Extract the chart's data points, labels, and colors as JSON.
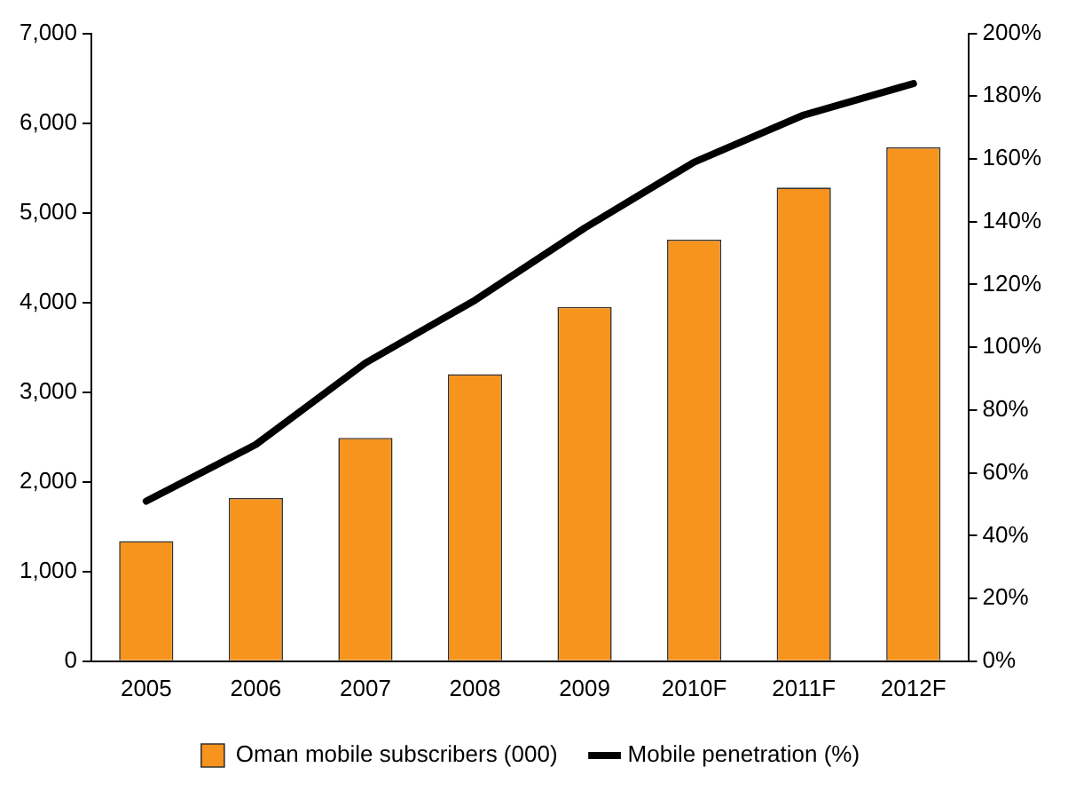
{
  "chart_data": {
    "type": "bar",
    "categories": [
      "2005",
      "2006",
      "2007",
      "2008",
      "2009",
      "2010F",
      "2011F",
      "2012F"
    ],
    "series": [
      {
        "name": "Oman mobile subscribers (000)",
        "color": "#f7941d",
        "values": [
          1340,
          1820,
          2490,
          3200,
          3950,
          4700,
          5280,
          5730
        ]
      },
      {
        "name": "Mobile penetration (%)",
        "type": "line",
        "axis": "y2",
        "color": "#000000",
        "values": [
          51,
          69,
          95,
          115,
          138,
          159,
          174,
          184
        ]
      }
    ],
    "ylim": [
      0,
      7000
    ],
    "yticks": [
      0,
      {
        "value": 1000,
        "label": "1,000"
      },
      {
        "value": 2000,
        "label": "2,000"
      },
      {
        "value": 3000,
        "label": "3,000"
      },
      {
        "value": 4000,
        "label": "4,000"
      },
      {
        "value": 5000,
        "label": "5,000"
      },
      {
        "value": 6000,
        "label": "6,000"
      },
      {
        "value": 7000,
        "label": "7,000"
      }
    ],
    "y2lim": [
      0,
      200
    ],
    "y2ticks": [
      {
        "value": 0,
        "label": "0%"
      },
      {
        "value": 20,
        "label": "20%"
      },
      {
        "value": 40,
        "label": "40%"
      },
      {
        "value": 60,
        "label": "60%"
      },
      {
        "value": 80,
        "label": "80%"
      },
      {
        "value": 100,
        "label": "100%"
      },
      {
        "value": 120,
        "label": "120%"
      },
      {
        "value": 140,
        "label": "140%"
      },
      {
        "value": 160,
        "label": "160%"
      },
      {
        "value": 180,
        "label": "180%"
      },
      {
        "value": 200,
        "label": "200%"
      }
    ],
    "grid": false,
    "legend": "bottom",
    "marker": "none",
    "line_style": "solid"
  }
}
